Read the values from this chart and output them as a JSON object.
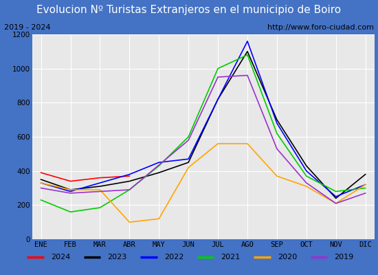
{
  "title": "Evolucion Nº Turistas Extranjeros en el municipio de Boiro",
  "subtitle_left": "2019 - 2024",
  "subtitle_right": "http://www.foro-ciudad.com",
  "months": [
    "ENE",
    "FEB",
    "MAR",
    "ABR",
    "MAY",
    "JUN",
    "JUL",
    "AGO",
    "SEP",
    "OCT",
    "NOV",
    "DIC"
  ],
  "ylim": [
    0,
    1200
  ],
  "yticks": [
    0,
    200,
    400,
    600,
    800,
    1000,
    1200
  ],
  "series": {
    "2024": {
      "color": "#ff0000",
      "values": [
        390,
        340,
        360,
        370,
        null,
        null,
        null,
        null,
        null,
        null,
        null,
        null
      ]
    },
    "2023": {
      "color": "#000000",
      "values": [
        350,
        290,
        310,
        340,
        390,
        450,
        820,
        1100,
        700,
        430,
        240,
        380
      ]
    },
    "2022": {
      "color": "#0000ff",
      "values": [
        330,
        280,
        330,
        380,
        450,
        470,
        820,
        1160,
        680,
        400,
        250,
        320
      ]
    },
    "2021": {
      "color": "#00cc00",
      "values": [
        230,
        160,
        185,
        290,
        430,
        600,
        1000,
        1080,
        620,
        370,
        280,
        300
      ]
    },
    "2020": {
      "color": "#ffa500",
      "values": [
        330,
        290,
        290,
        100,
        120,
        420,
        560,
        560,
        370,
        310,
        210,
        320
      ]
    },
    "2019": {
      "color": "#9932cc",
      "values": [
        300,
        270,
        280,
        290,
        null,
        580,
        950,
        960,
        530,
        330,
        210,
        270
      ]
    }
  },
  "title_bg_color": "#4472c4",
  "title_text_color": "#ffffff",
  "subtitle_bg_color": "#ffffff",
  "plot_bg_color": "#e8e8e8",
  "grid_color": "#ffffff",
  "border_color": "#4472c4",
  "legend_order": [
    "2024",
    "2023",
    "2022",
    "2021",
    "2020",
    "2019"
  ],
  "title_fontsize": 11,
  "subtitle_fontsize": 8,
  "axis_fontsize": 7.5
}
